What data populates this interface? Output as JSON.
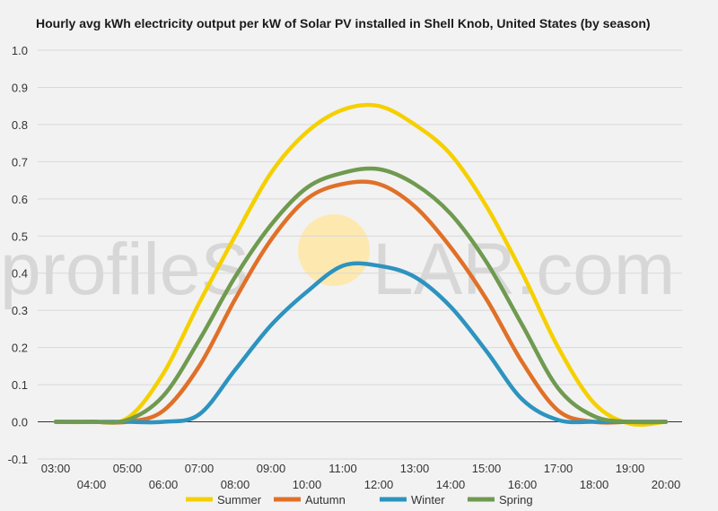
{
  "chart_data": {
    "type": "line",
    "title": "Hourly avg kWh electricity output per kW of Solar PV installed in Shell Knob, United States (by season)",
    "xlabel": "",
    "ylabel": "",
    "x": [
      "03:00",
      "04:00",
      "05:00",
      "06:00",
      "07:00",
      "08:00",
      "09:00",
      "10:00",
      "11:00",
      "12:00",
      "13:00",
      "14:00",
      "15:00",
      "16:00",
      "17:00",
      "18:00",
      "19:00",
      "20:00"
    ],
    "ylim": [
      -0.1,
      1.0
    ],
    "yticks": [
      "-0.1",
      "0.0",
      "0.1",
      "0.2",
      "0.3",
      "0.4",
      "0.5",
      "0.6",
      "0.7",
      "0.8",
      "0.9",
      "1.0"
    ],
    "grid": true,
    "legend_position": "bottom",
    "series": [
      {
        "name": "Summer",
        "color": "#f5d000",
        "values": [
          0.0,
          0.0,
          0.01,
          0.13,
          0.32,
          0.5,
          0.67,
          0.78,
          0.84,
          0.85,
          0.8,
          0.72,
          0.58,
          0.4,
          0.2,
          0.05,
          -0.005,
          0.0
        ]
      },
      {
        "name": "Autumn",
        "color": "#e07028",
        "values": [
          0.0,
          0.0,
          0.0,
          0.03,
          0.15,
          0.33,
          0.49,
          0.6,
          0.64,
          0.64,
          0.58,
          0.47,
          0.33,
          0.16,
          0.03,
          0.0,
          0.0,
          0.0
        ]
      },
      {
        "name": "Winter",
        "color": "#2d93bf",
        "values": [
          0.0,
          0.0,
          0.0,
          0.0,
          0.02,
          0.14,
          0.26,
          0.35,
          0.42,
          0.42,
          0.39,
          0.31,
          0.19,
          0.06,
          0.005,
          0.0,
          0.0,
          0.0
        ]
      },
      {
        "name": "Spring",
        "color": "#6f9a50",
        "values": [
          0.0,
          0.0,
          0.005,
          0.07,
          0.22,
          0.39,
          0.53,
          0.63,
          0.67,
          0.68,
          0.64,
          0.56,
          0.43,
          0.26,
          0.09,
          0.015,
          0.0,
          0.0
        ]
      }
    ]
  },
  "watermark": {
    "text_left": "profileS",
    "text_right": "LAR.com",
    "sun_color": "#fde9b0",
    "icon": "sun-icon"
  }
}
